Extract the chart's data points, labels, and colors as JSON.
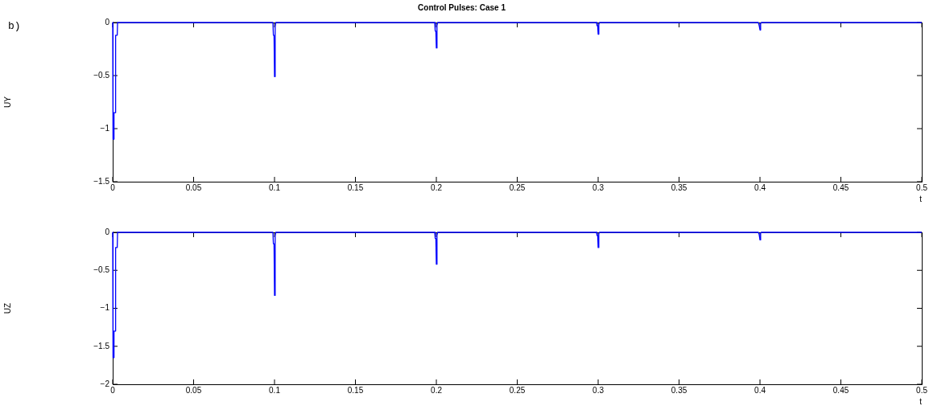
{
  "chart_data": [
    {
      "type": "line",
      "title": "Control Pulses: Case 1",
      "xlabel": "t",
      "ylabel": "UY",
      "annotations": [
        "b)"
      ],
      "x": [
        0,
        0.0002,
        0.0006,
        0.0008,
        0.0015,
        0.0018,
        0.0028,
        0.003,
        0.099,
        0.0993,
        0.0997,
        0.1,
        0.1004,
        0.1008,
        0.199,
        0.1993,
        0.1997,
        0.2,
        0.2004,
        0.2008,
        0.299,
        0.2993,
        0.2997,
        0.3,
        0.3004,
        0.3008,
        0.399,
        0.3995,
        0.4,
        0.4004,
        0.4008,
        0.5
      ],
      "series": [
        {
          "color": "#0000ff",
          "values": [
            0,
            -1.1,
            -1.1,
            -0.85,
            -0.85,
            -0.12,
            -0.12,
            0,
            0,
            -0.12,
            -0.12,
            -0.51,
            -0.04,
            0,
            0,
            -0.08,
            -0.08,
            -0.24,
            -0.03,
            0,
            0,
            -0.03,
            -0.03,
            -0.11,
            -0.02,
            0,
            0,
            -0.03,
            -0.07,
            -0.01,
            0,
            0
          ]
        }
      ],
      "xlim": [
        0,
        0.5
      ],
      "ylim": [
        -1.5,
        0
      ],
      "xticks": [
        0,
        0.05,
        0.1,
        0.15,
        0.2,
        0.25,
        0.3,
        0.35,
        0.4,
        0.45,
        0.5
      ],
      "yticks": [
        -1.5,
        -1,
        -0.5,
        0
      ]
    },
    {
      "type": "line",
      "xlabel": "t",
      "ylabel": "UZ",
      "x": [
        0,
        0.0002,
        0.0006,
        0.0008,
        0.0015,
        0.0018,
        0.0028,
        0.003,
        0.099,
        0.0993,
        0.0997,
        0.1,
        0.1004,
        0.1008,
        0.199,
        0.1993,
        0.1997,
        0.2,
        0.2004,
        0.2008,
        0.299,
        0.2993,
        0.2997,
        0.3,
        0.3004,
        0.3008,
        0.399,
        0.3995,
        0.4,
        0.4004,
        0.4008,
        0.5
      ],
      "series": [
        {
          "color": "#0000ff",
          "values": [
            0,
            -1.65,
            -1.65,
            -1.3,
            -1.3,
            -0.2,
            -0.2,
            0,
            0,
            -0.15,
            -0.15,
            -0.83,
            -0.05,
            0,
            0,
            -0.08,
            -0.08,
            -0.42,
            -0.04,
            0,
            0,
            -0.04,
            -0.04,
            -0.2,
            -0.02,
            0,
            0,
            -0.03,
            -0.1,
            -0.01,
            0,
            0
          ]
        }
      ],
      "xlim": [
        0,
        0.5
      ],
      "ylim": [
        -2,
        0
      ],
      "xticks": [
        0,
        0.05,
        0.1,
        0.15,
        0.2,
        0.25,
        0.3,
        0.35,
        0.4,
        0.45,
        0.5
      ],
      "yticks": [
        -2,
        -1.5,
        -1,
        -0.5,
        0
      ]
    }
  ]
}
